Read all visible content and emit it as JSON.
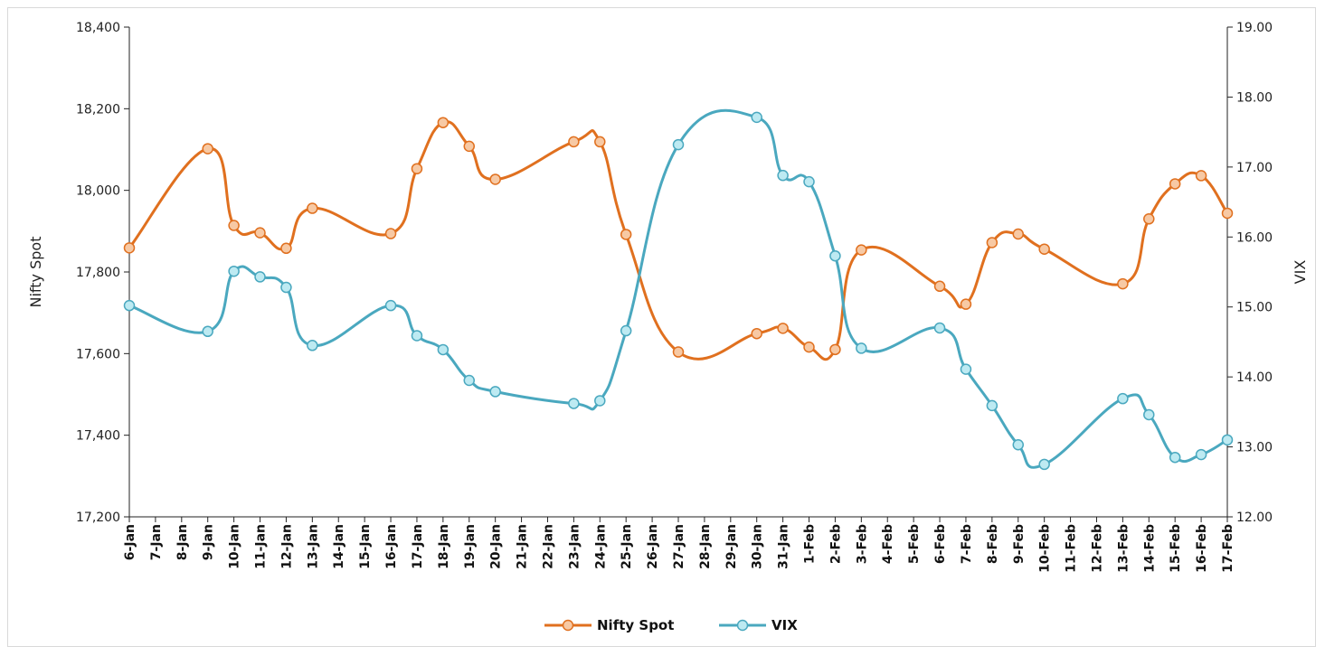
{
  "colors": {
    "nifty": "#E0701F",
    "nifty_marker_fill": "#F7C9A4",
    "vix": "#4AA8BF",
    "vix_marker_fill": "#BDEAF2",
    "axis": "#222222"
  },
  "chart_data": {
    "type": "line",
    "categories": [
      "6-Jan",
      "7-Jan",
      "8-Jan",
      "9-Jan",
      "10-Jan",
      "11-Jan",
      "12-Jan",
      "13-Jan",
      "14-Jan",
      "15-Jan",
      "16-Jan",
      "17-Jan",
      "18-Jan",
      "19-Jan",
      "20-Jan",
      "21-Jan",
      "22-Jan",
      "23-Jan",
      "24-Jan",
      "25-Jan",
      "26-Jan",
      "27-Jan",
      "28-Jan",
      "29-Jan",
      "30-Jan",
      "31-Jan",
      "1-Feb",
      "2-Feb",
      "3-Feb",
      "4-Feb",
      "5-Feb",
      "6-Feb",
      "7-Feb",
      "8-Feb",
      "9-Feb",
      "10-Feb",
      "11-Feb",
      "12-Feb",
      "13-Feb",
      "14-Feb",
      "15-Feb",
      "16-Feb",
      "17-Feb"
    ],
    "series": [
      {
        "name": "Nifty Spot",
        "axis": "left",
        "values": [
          17859,
          null,
          null,
          18102,
          17914,
          17896,
          17858,
          17956,
          null,
          null,
          17894,
          18053,
          18166,
          18108,
          18027,
          null,
          null,
          18119,
          18119,
          17892,
          null,
          17604,
          null,
          null,
          17649,
          17662,
          17616,
          17610,
          17854,
          null,
          null,
          17765,
          17721,
          17872,
          17893,
          17856,
          null,
          null,
          17771,
          17930,
          18016,
          18036,
          17944
        ]
      },
      {
        "name": "VIX",
        "axis": "right",
        "values": [
          15.02,
          null,
          null,
          14.65,
          15.51,
          15.43,
          15.28,
          14.45,
          null,
          null,
          15.02,
          14.59,
          14.39,
          13.95,
          13.79,
          null,
          null,
          13.62,
          13.66,
          14.66,
          null,
          17.32,
          null,
          null,
          17.71,
          16.88,
          16.79,
          15.73,
          14.41,
          null,
          null,
          14.7,
          14.11,
          13.59,
          13.03,
          12.75,
          null,
          null,
          13.69,
          13.46,
          12.85,
          12.89,
          13.1
        ]
      }
    ],
    "yleft": {
      "label": "Nifty Spot",
      "range": [
        17200,
        18400
      ],
      "ticks": [
        17200,
        17400,
        17600,
        17800,
        18000,
        18200,
        18400
      ],
      "tick_labels": [
        "17,200",
        "17,400",
        "17,600",
        "17,800",
        "18,000",
        "18,200",
        "18,400"
      ]
    },
    "yright": {
      "label": "VIX",
      "range": [
        12,
        19
      ],
      "ticks": [
        12,
        13,
        14,
        15,
        16,
        17,
        18,
        19
      ],
      "tick_labels": [
        "12.00",
        "13.00",
        "14.00",
        "15.00",
        "16.00",
        "17.00",
        "18.00",
        "19.00"
      ]
    },
    "legend": {
      "position": "bottom",
      "entries": [
        "Nifty Spot",
        "VIX"
      ]
    },
    "grid": false,
    "smooth": true
  }
}
